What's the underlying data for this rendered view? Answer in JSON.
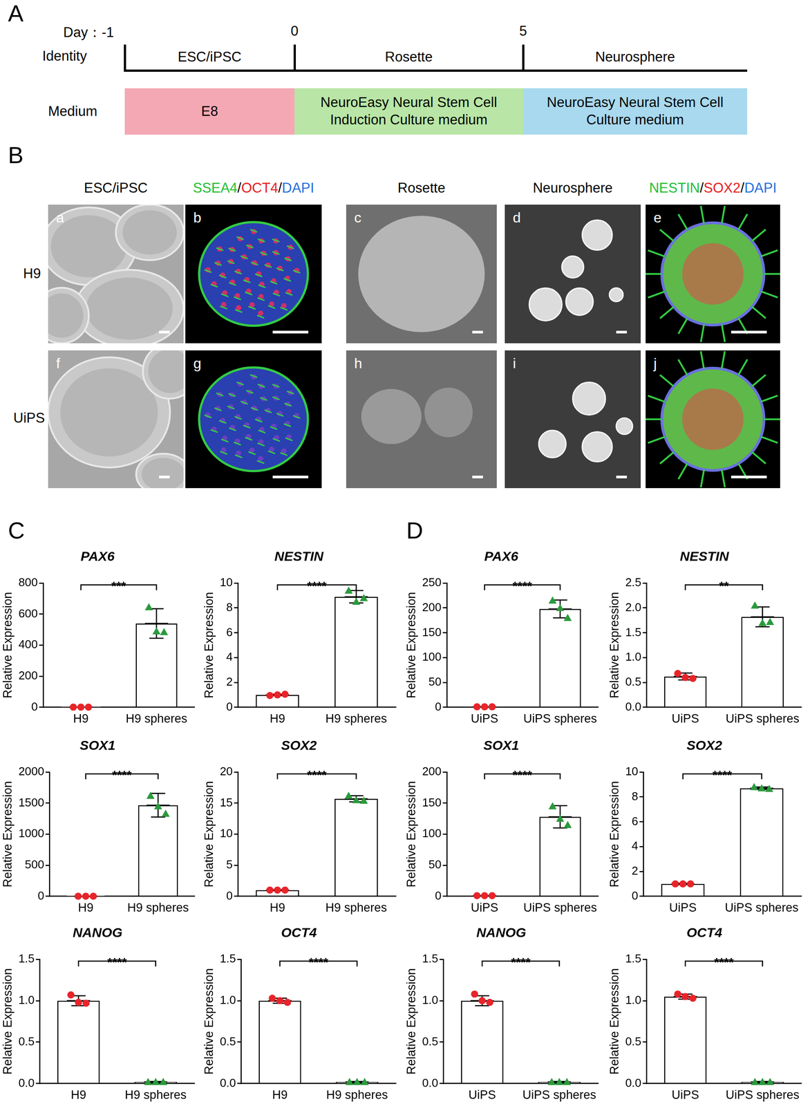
{
  "panel_labels": [
    "A",
    "B",
    "C",
    "D"
  ],
  "timeline": {
    "day_label": "Day：",
    "days": [
      -1,
      0,
      5
    ],
    "row_labels": [
      "Identity",
      "Medium"
    ],
    "identities": [
      "ESC/iPSC",
      "Rosette",
      "Neurosphere"
    ],
    "media": [
      {
        "text": "E8",
        "color": "#f4a8b4"
      },
      {
        "text": "NeuroEasy Neural Stem Cell Induction Culture medium",
        "color": "#b9e6a6"
      },
      {
        "text": "NeuroEasy Neural Stem Cell Culture medium",
        "color": "#a9d9ee"
      }
    ]
  },
  "micrographs": {
    "column_titles": [
      [
        {
          "text": "ESC/iPSC",
          "color": "#000000"
        }
      ],
      [
        {
          "text": "SSEA4",
          "color": "#22c033"
        },
        {
          "text": "/",
          "color": "#000000"
        },
        {
          "text": "OCT4",
          "color": "#e8201c"
        },
        {
          "text": "/",
          "color": "#000000"
        },
        {
          "text": "DAPI",
          "color": "#1f6fe0"
        }
      ],
      [
        {
          "text": "Rosette",
          "color": "#000000"
        }
      ],
      [
        {
          "text": "Neurosphere",
          "color": "#000000"
        }
      ],
      [
        {
          "text": "NESTIN",
          "color": "#22c033"
        },
        {
          "text": "/",
          "color": "#000000"
        },
        {
          "text": "SOX2",
          "color": "#e8201c"
        },
        {
          "text": "/",
          "color": "#000000"
        },
        {
          "text": "DAPI",
          "color": "#1f6fe0"
        }
      ]
    ],
    "rows": [
      "H9",
      "UiPS"
    ],
    "panel_letters": [
      [
        "a",
        "b",
        "c",
        "d",
        "e"
      ],
      [
        "f",
        "g",
        "h",
        "i",
        "j"
      ]
    ]
  },
  "chart_data": [
    {
      "type": "bar",
      "title": "PAX6",
      "y_label": "Relative Expression",
      "categories": [
        "H9",
        "H9 spheres"
      ],
      "values": [
        1,
        540
      ],
      "errors": [
        0.1,
        95
      ],
      "replicates": [
        [
          1,
          1,
          1
        ],
        [
          645,
          490,
          485
        ]
      ],
      "colors": [
        "#e8242a",
        "#2a9a3c"
      ],
      "significance": "***",
      "ylim": [
        0,
        800
      ],
      "yticks": [
        0,
        200,
        400,
        600,
        800
      ],
      "grid": false
    },
    {
      "type": "bar",
      "title": "NESTIN",
      "y_label": "Relative Expression",
      "categories": [
        "H9",
        "H9 spheres"
      ],
      "values": [
        1.0,
        8.9
      ],
      "errors": [
        0.05,
        0.5
      ],
      "replicates": [
        [
          0.95,
          1.0,
          1.05
        ],
        [
          9.4,
          8.5,
          8.8
        ]
      ],
      "colors": [
        "#e8242a",
        "#2a9a3c"
      ],
      "significance": "****",
      "ylim": [
        0,
        10
      ],
      "yticks": [
        0,
        2,
        4,
        6,
        8,
        10
      ],
      "grid": false
    },
    {
      "type": "bar",
      "title": "SOX1",
      "y_label": "Relative Expression",
      "categories": [
        "H9",
        "H9 spheres"
      ],
      "values": [
        1,
        1467
      ],
      "errors": [
        0.1,
        190
      ],
      "replicates": [
        [
          1,
          1,
          1
        ],
        [
          1620,
          1450,
          1330
        ]
      ],
      "colors": [
        "#e8242a",
        "#2a9a3c"
      ],
      "significance": "****",
      "ylim": [
        0,
        2000
      ],
      "yticks": [
        0,
        500,
        1000,
        1500,
        2000
      ],
      "grid": false
    },
    {
      "type": "bar",
      "title": "SOX2",
      "y_label": "Relative Expression",
      "categories": [
        "H9",
        "H9 spheres"
      ],
      "values": [
        1.0,
        15.7
      ],
      "errors": [
        0.05,
        0.5
      ],
      "replicates": [
        [
          1.0,
          1.0,
          1.0
        ],
        [
          16.2,
          15.5,
          15.4
        ]
      ],
      "colors": [
        "#e8242a",
        "#2a9a3c"
      ],
      "significance": "****",
      "ylim": [
        0,
        20
      ],
      "yticks": [
        0,
        5,
        10,
        15,
        20
      ],
      "grid": false
    },
    {
      "type": "bar",
      "title": "NANOG",
      "y_label": "Relative Expression",
      "categories": [
        "H9",
        "H9 spheres"
      ],
      "values": [
        1.0,
        0.02
      ],
      "errors": [
        0.06,
        0.005
      ],
      "replicates": [
        [
          1.07,
          0.98,
          0.97
        ],
        [
          0.02,
          0.02,
          0.02
        ]
      ],
      "colors": [
        "#e8242a",
        "#2a9a3c"
      ],
      "significance": "****",
      "ylim": [
        0,
        1.5
      ],
      "yticks": [
        {
          "value": 0,
          "label": "0.0"
        },
        0.5,
        {
          "value": 1,
          "label": "1.0"
        },
        1.5
      ],
      "grid": false
    },
    {
      "type": "bar",
      "title": "OCT4",
      "y_label": "Relative Expression",
      "categories": [
        "H9",
        "H9 spheres"
      ],
      "values": [
        1.0,
        0.02
      ],
      "errors": [
        0.03,
        0.005
      ],
      "replicates": [
        [
          1.03,
          1.0,
          0.98
        ],
        [
          0.02,
          0.02,
          0.02
        ]
      ],
      "colors": [
        "#e8242a",
        "#2a9a3c"
      ],
      "significance": "****",
      "ylim": [
        0,
        1.5
      ],
      "yticks": [
        {
          "value": 0,
          "label": "0.0"
        },
        0.5,
        {
          "value": 1,
          "label": "1.0"
        },
        1.5
      ],
      "grid": false
    },
    {
      "type": "bar",
      "title": "PAX6",
      "y_label": "Relative Expression",
      "categories": [
        "UiPS",
        "UiPS spheres"
      ],
      "values": [
        1,
        198
      ],
      "errors": [
        0.1,
        18
      ],
      "replicates": [
        [
          1,
          1,
          1
        ],
        [
          215,
          200,
          180
        ]
      ],
      "colors": [
        "#e8242a",
        "#2a9a3c"
      ],
      "significance": "****",
      "ylim": [
        0,
        250
      ],
      "yticks": [
        0,
        50,
        100,
        150,
        200,
        250
      ],
      "grid": false
    },
    {
      "type": "bar",
      "title": "NESTIN",
      "y_label": "Relative Expression",
      "categories": [
        "UiPS",
        "UiPS spheres"
      ],
      "values": [
        0.62,
        1.82
      ],
      "errors": [
        0.07,
        0.2
      ],
      "replicates": [
        [
          0.68,
          0.6,
          0.58
        ],
        [
          2.05,
          1.7,
          1.72
        ]
      ],
      "colors": [
        "#e8242a",
        "#2a9a3c"
      ],
      "significance": "**",
      "ylim": [
        0,
        2.5
      ],
      "yticks": [
        {
          "value": 0,
          "label": "0.0"
        },
        0.5,
        {
          "value": 1,
          "label": "1.0"
        },
        1.5,
        {
          "value": 2,
          "label": "2.0"
        },
        2.5
      ],
      "grid": false
    },
    {
      "type": "bar",
      "title": "SOX1",
      "y_label": "Relative Expression",
      "categories": [
        "UiPS",
        "UiPS spheres"
      ],
      "values": [
        1,
        128
      ],
      "errors": [
        0.1,
        18
      ],
      "replicates": [
        [
          1,
          1,
          1
        ],
        [
          145,
          125,
          115
        ]
      ],
      "colors": [
        "#e8242a",
        "#2a9a3c"
      ],
      "significance": "****",
      "ylim": [
        0,
        200
      ],
      "yticks": [
        0,
        50,
        100,
        150,
        200
      ],
      "grid": false
    },
    {
      "type": "bar",
      "title": "SOX2",
      "y_label": "Relative Expression",
      "categories": [
        "UiPS",
        "UiPS spheres"
      ],
      "values": [
        1.0,
        8.7
      ],
      "errors": [
        0.05,
        0.1
      ],
      "replicates": [
        [
          1.0,
          1.0,
          1.0
        ],
        [
          8.8,
          8.7,
          8.65
        ]
      ],
      "colors": [
        "#e8242a",
        "#2a9a3c"
      ],
      "significance": "****",
      "ylim": [
        0,
        10
      ],
      "yticks": [
        0,
        2,
        4,
        6,
        8,
        10
      ],
      "grid": false
    },
    {
      "type": "bar",
      "title": "NANOG",
      "y_label": "Relative Expression",
      "categories": [
        "UiPS",
        "UiPS spheres"
      ],
      "values": [
        1.0,
        0.02
      ],
      "errors": [
        0.06,
        0.005
      ],
      "replicates": [
        [
          1.08,
          1.0,
          0.98
        ],
        [
          0.02,
          0.02,
          0.02
        ]
      ],
      "colors": [
        "#e8242a",
        "#2a9a3c"
      ],
      "significance": "****",
      "ylim": [
        0,
        1.5
      ],
      "yticks": [
        {
          "value": 0,
          "label": "0.0"
        },
        0.5,
        {
          "value": 1,
          "label": "1.0"
        },
        1.5
      ],
      "grid": false
    },
    {
      "type": "bar",
      "title": "OCT4",
      "y_label": "Relative Expression",
      "categories": [
        "UiPS",
        "UiPS spheres"
      ],
      "values": [
        1.05,
        0.02
      ],
      "errors": [
        0.03,
        0.005
      ],
      "replicates": [
        [
          1.08,
          1.05,
          1.03
        ],
        [
          0.02,
          0.02,
          0.02
        ]
      ],
      "colors": [
        "#e8242a",
        "#2a9a3c"
      ],
      "significance": "****",
      "ylim": [
        0,
        1.5
      ],
      "yticks": [
        {
          "value": 0,
          "label": "0.0"
        },
        0.5,
        {
          "value": 1,
          "label": "1.0"
        },
        1.5
      ],
      "grid": false
    }
  ]
}
